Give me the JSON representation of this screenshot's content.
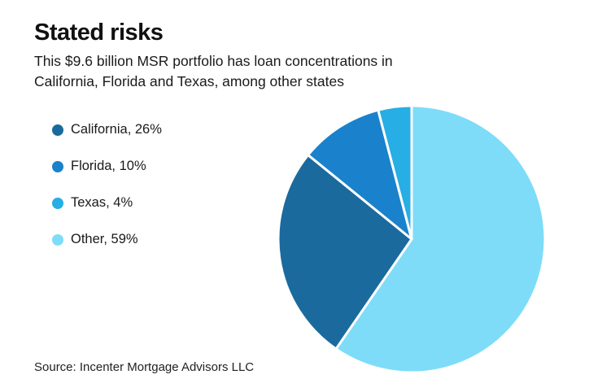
{
  "chart_data": {
    "type": "pie",
    "title": "Stated risks",
    "subtitle": "This $9.6 billion MSR portfolio has loan concentrations in California, Florida and Texas, among other states",
    "slices": [
      {
        "name": "California",
        "value": 26,
        "label": "California, 26%",
        "color": "#1b6a9e"
      },
      {
        "name": "Florida",
        "value": 10,
        "label": "Florida, 10%",
        "color": "#1a82cc"
      },
      {
        "name": "Texas",
        "value": 4,
        "label": "Texas, 4%",
        "color": "#27aee4"
      },
      {
        "name": "Other",
        "value": 59,
        "label": "Other, 59%",
        "color": "#7edcf8"
      }
    ],
    "draw_order": [
      "Other",
      "California",
      "Florida",
      "Texas"
    ],
    "start_angle_deg": 0,
    "direction": "clockwise",
    "slice_gap_color": "#ffffff",
    "legend_position": "left",
    "source": "Source: Incenter Mortgage Advisors LLC"
  }
}
